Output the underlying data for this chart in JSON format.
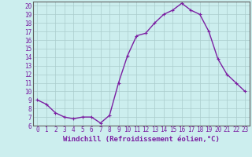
{
  "x": [
    0,
    1,
    2,
    3,
    4,
    5,
    6,
    7,
    8,
    9,
    10,
    11,
    12,
    13,
    14,
    15,
    16,
    17,
    18,
    19,
    20,
    21,
    22,
    23
  ],
  "y": [
    9,
    8.5,
    7.5,
    7,
    6.8,
    7,
    7,
    6.3,
    7.2,
    11,
    14.2,
    16.5,
    16.8,
    18,
    19,
    19.5,
    20.3,
    19.5,
    19,
    17,
    13.8,
    12,
    11,
    10
  ],
  "line_color": "#7b1fa2",
  "marker": "+",
  "bg_color": "#cceeee",
  "grid_color": "#aacccc",
  "xlabel": "Windchill (Refroidissement éolien,°C)",
  "xlim_min": -0.5,
  "xlim_max": 23.5,
  "ylim_min": 6,
  "ylim_max": 20.5,
  "yticks": [
    6,
    7,
    8,
    9,
    10,
    11,
    12,
    13,
    14,
    15,
    16,
    17,
    18,
    19,
    20
  ],
  "xticks": [
    0,
    1,
    2,
    3,
    4,
    5,
    6,
    7,
    8,
    9,
    10,
    11,
    12,
    13,
    14,
    15,
    16,
    17,
    18,
    19,
    20,
    21,
    22,
    23
  ],
  "tick_fontsize": 5.5,
  "xlabel_fontsize": 6.5,
  "marker_size": 3,
  "line_width": 1.0
}
